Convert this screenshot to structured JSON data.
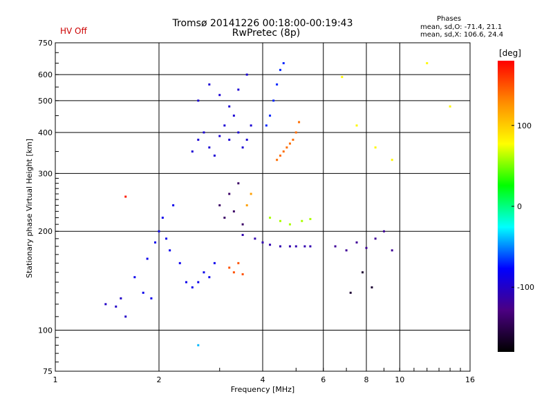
{
  "header": {
    "title_line1": "Tromsø 20141226 00:18:00-00:19:43",
    "title_line2": "RwPretec (8p)",
    "status_text": "HV Off",
    "phases_title": "Phases",
    "phases_line1": "mean, sd,O: -71.4, 21.1",
    "phases_line2": "mean, sd,X: 106.6, 24.4"
  },
  "chart_data": {
    "type": "scatter",
    "xlabel": "Frequency [MHz]",
    "ylabel": "Stationary phase Virtual Height [km]",
    "x_scale": "log",
    "y_scale": "log",
    "xlim": [
      1,
      16
    ],
    "ylim": [
      75,
      750
    ],
    "x_ticks": [
      1,
      2,
      4,
      6,
      8,
      10,
      16
    ],
    "x_tick_labels": [
      "1",
      "2",
      "4",
      "6",
      "8",
      "10",
      "16"
    ],
    "y_ticks": [
      75,
      100,
      200,
      300,
      400,
      500,
      600,
      750
    ],
    "y_tick_labels": [
      "75",
      "100",
      "200",
      "300",
      "400",
      "500",
      "600",
      "750"
    ],
    "grid": true,
    "colorbar": {
      "label": "[deg]",
      "range": [
        -180,
        180
      ],
      "ticks": [
        100,
        0,
        -100
      ],
      "tick_labels": [
        "100",
        "0",
        "-100"
      ],
      "colors": [
        "#000000",
        "#4b0082",
        "#0000ff",
        "#00ffff",
        "#00ff00",
        "#ffff00",
        "#ff8c00",
        "#ff0000"
      ]
    },
    "series": [
      {
        "x": [
          1.7,
          1.8,
          1.9,
          1.85,
          1.95,
          2.0,
          2.05,
          2.1,
          2.15,
          2.2,
          2.3,
          2.4,
          2.5,
          2.6,
          2.7,
          2.8,
          2.9
        ],
        "y": [
          145,
          130,
          125,
          165,
          185,
          200,
          220,
          190,
          175,
          240,
          160,
          140,
          135,
          140,
          150,
          145,
          160
        ],
        "phase": -85
      },
      {
        "x": [
          2.5,
          2.6,
          2.7,
          2.8,
          2.9,
          3.0,
          3.1,
          3.2,
          3.3,
          3.4,
          3.5,
          3.6,
          3.7,
          2.6,
          2.8,
          3.0,
          3.2,
          3.4,
          3.6
        ],
        "y": [
          350,
          380,
          400,
          360,
          340,
          390,
          420,
          380,
          450,
          400,
          360,
          380,
          420,
          500,
          560,
          520,
          480,
          540,
          600
        ],
        "phase": -95
      },
      {
        "x": [
          3.0,
          3.1,
          3.2,
          3.3,
          3.4,
          3.5
        ],
        "y": [
          240,
          220,
          260,
          230,
          280,
          210
        ],
        "phase": -140
      },
      {
        "x": [
          3.5,
          3.8,
          4.0,
          4.2,
          4.5,
          4.8,
          5.0,
          5.3,
          5.5
        ],
        "y": [
          195,
          190,
          185,
          182,
          180,
          180,
          180,
          180,
          180
        ],
        "phase": -110
      },
      {
        "x": [
          4.4,
          4.5,
          4.6,
          4.7,
          4.8,
          4.9,
          5.0,
          5.1
        ],
        "y": [
          330,
          340,
          350,
          360,
          370,
          380,
          400,
          430
        ],
        "phase": 140
      },
      {
        "x": [
          3.2,
          3.3,
          3.4,
          3.5
        ],
        "y": [
          155,
          150,
          160,
          148
        ],
        "phase": 150
      },
      {
        "x": [
          3.6,
          3.7
        ],
        "y": [
          240,
          260
        ],
        "phase": 120
      },
      {
        "x": [
          4.2,
          4.5,
          4.8,
          5.2,
          5.5
        ],
        "y": [
          220,
          215,
          210,
          215,
          218
        ],
        "phase": 60
      },
      {
        "x": [
          6.5,
          7.0,
          7.5,
          8.0,
          8.5,
          9.0,
          9.5
        ],
        "y": [
          180,
          175,
          185,
          178,
          190,
          200,
          175
        ],
        "phase": -120
      },
      {
        "x": [
          6.8,
          7.5,
          8.5,
          9.5,
          12.0,
          14.0
        ],
        "y": [
          590,
          420,
          360,
          330,
          650,
          480
        ],
        "phase": 80
      },
      {
        "x": [
          7.2,
          7.8,
          8.3
        ],
        "y": [
          130,
          150,
          135
        ],
        "phase": -160
      },
      {
        "x": [
          4.2,
          4.3,
          4.4,
          4.5,
          4.6,
          4.1
        ],
        "y": [
          450,
          500,
          560,
          620,
          650,
          420
        ],
        "phase": -70
      },
      {
        "x": [
          1.4,
          1.5,
          1.55,
          1.6
        ],
        "y": [
          120,
          118,
          125,
          110
        ],
        "phase": -100
      },
      {
        "x": [
          1.6
        ],
        "y": [
          255
        ],
        "phase": 170
      },
      {
        "x": [
          2.6
        ],
        "y": [
          90
        ],
        "phase": -40
      }
    ]
  }
}
